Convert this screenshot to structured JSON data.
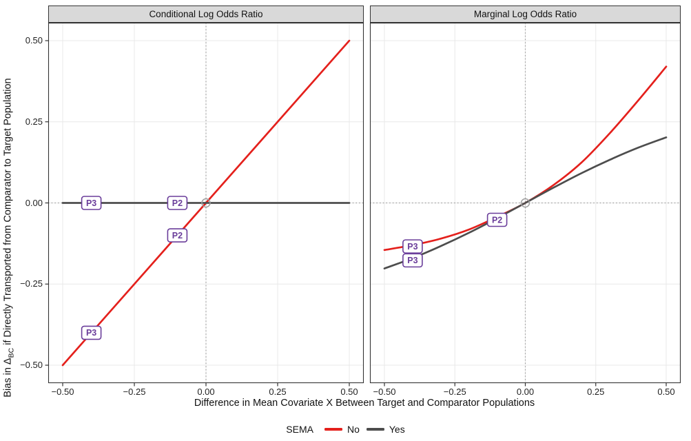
{
  "figure": {
    "x_axis_title": "Difference in Mean Covariate X Between Target and Comparator Populations",
    "y_axis_title_prefix": "Bias in Δ",
    "y_axis_title_sub": "BC",
    "y_axis_title_suffix": " if Directly Transported from Comparator to Target Population"
  },
  "chart_data": {
    "type": "line",
    "title": "",
    "xlabel": "Difference in Mean Covariate X Between Target and Comparator Populations",
    "ylabel": "Bias in Δ_BC if Directly Transported from Comparator to Target Population",
    "xlim": [
      -0.5,
      0.5
    ],
    "ylim": [
      -0.5,
      0.5
    ],
    "grid": "major",
    "xticks": [
      {
        "v": -0.5,
        "label": "−0.50"
      },
      {
        "v": -0.25,
        "label": "−0.25"
      },
      {
        "v": 0,
        "label": "0.00"
      },
      {
        "v": 0.25,
        "label": "0.25"
      },
      {
        "v": 0.5,
        "label": "0.50"
      }
    ],
    "yticks": [
      {
        "v": 0.5,
        "label": "0.50"
      },
      {
        "v": 0.25,
        "label": "0.25"
      },
      {
        "v": 0,
        "label": "0.00"
      },
      {
        "v": -0.25,
        "label": "−0.25"
      },
      {
        "v": -0.5,
        "label": "−0.50"
      }
    ],
    "legend": {
      "title": "SEMA",
      "position": "bottom",
      "entries": [
        {
          "label": "No",
          "color": "#E4201C"
        },
        {
          "label": "Yes",
          "color": "#4D4D4D"
        }
      ]
    },
    "reference": {
      "vline_x": 0,
      "hline_y": 0,
      "origin_marker": [
        0,
        0
      ]
    },
    "panels": [
      {
        "title": "Conditional Log Odds Ratio",
        "series": [
          {
            "name": "No",
            "color": "#E4201C",
            "smooth": false,
            "points": [
              [
                -0.5,
                -0.5
              ],
              [
                0.5,
                0.5
              ]
            ]
          },
          {
            "name": "Yes",
            "color": "#4D4D4D",
            "smooth": false,
            "points": [
              [
                -0.5,
                0
              ],
              [
                0.5,
                0
              ]
            ]
          }
        ],
        "point_labels": [
          {
            "text": "P3",
            "x": -0.4,
            "y": 0
          },
          {
            "text": "P2",
            "x": -0.1,
            "y": 0
          },
          {
            "text": "P2",
            "x": -0.1,
            "y": -0.1
          },
          {
            "text": "P3",
            "x": -0.4,
            "y": -0.4
          }
        ]
      },
      {
        "title": "Marginal Log Odds Ratio",
        "series": [
          {
            "name": "No",
            "color": "#E4201C",
            "smooth": true,
            "points": [
              [
                -0.5,
                -0.145
              ],
              [
                -0.4,
                -0.13
              ],
              [
                -0.3,
                -0.11
              ],
              [
                -0.2,
                -0.082
              ],
              [
                -0.1,
                -0.043
              ],
              [
                0,
                0
              ],
              [
                0.1,
                0.055
              ],
              [
                0.2,
                0.125
              ],
              [
                0.3,
                0.215
              ],
              [
                0.4,
                0.315
              ],
              [
                0.5,
                0.42
              ]
            ]
          },
          {
            "name": "Yes",
            "color": "#4D4D4D",
            "smooth": true,
            "points": [
              [
                -0.5,
                -0.202
              ],
              [
                -0.4,
                -0.17
              ],
              [
                -0.3,
                -0.133
              ],
              [
                -0.2,
                -0.092
              ],
              [
                -0.1,
                -0.047
              ],
              [
                0,
                0
              ],
              [
                0.1,
                0.047
              ],
              [
                0.2,
                0.092
              ],
              [
                0.3,
                0.133
              ],
              [
                0.4,
                0.17
              ],
              [
                0.5,
                0.202
              ]
            ]
          }
        ],
        "point_labels": [
          {
            "text": "P2",
            "x": -0.1,
            "y": -0.052
          },
          {
            "text": "P3",
            "x": -0.4,
            "y": -0.134
          },
          {
            "text": "P3",
            "x": -0.4,
            "y": -0.177
          }
        ]
      }
    ],
    "colors": {
      "red": "#E4201C",
      "gray": "#4D4D4D",
      "label_purple": "#6A3D9A",
      "grid": "#E8E8E8",
      "ref_line": "#999999",
      "strip_bg": "#D9D9D9",
      "panel_border": "#333333",
      "origin_marker": "#9E9E9E"
    }
  }
}
